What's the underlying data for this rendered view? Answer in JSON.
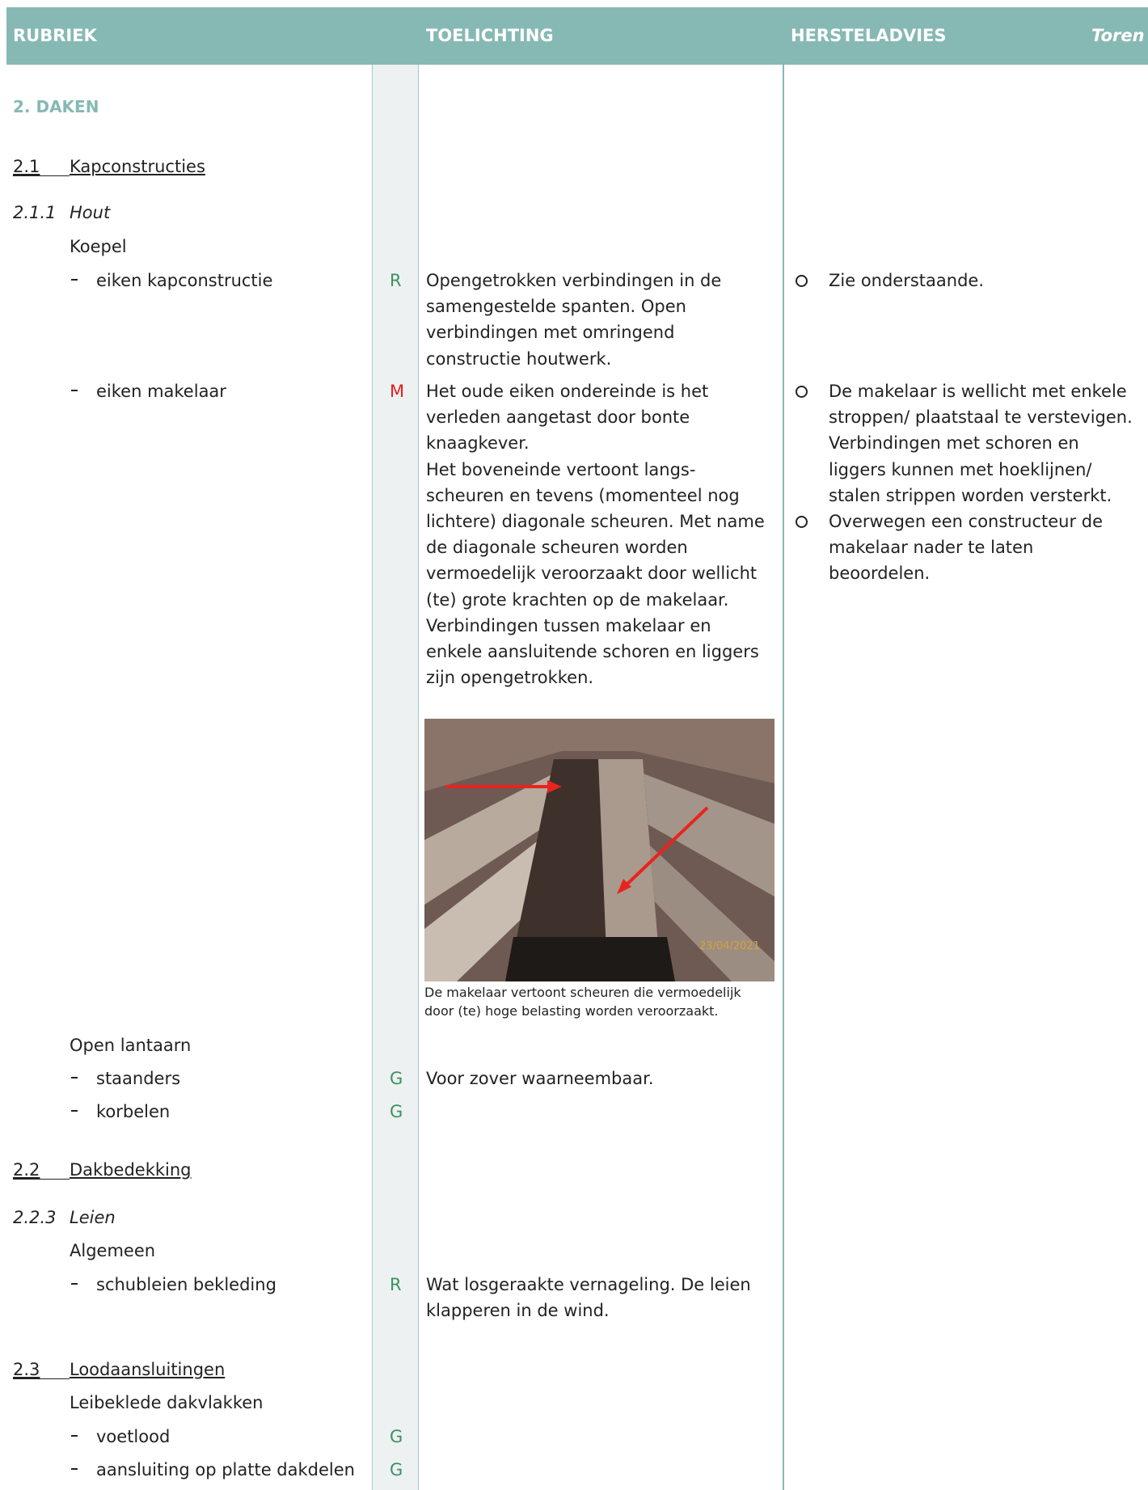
{
  "header": {
    "rubriek": "RUBRIEK",
    "toelichting": "TOELICHTING",
    "hersteladvies": "HERSTELADVIES",
    "object": "Toren"
  },
  "chapter": "2. DAKEN",
  "rows": [
    {
      "number": "2.1",
      "title": "Kapconstructies"
    },
    {
      "number": "2.1.1",
      "title": "Hout"
    },
    {
      "group": "Koepel"
    },
    {
      "item": "eiken kapconstructie",
      "score": "R",
      "notes": [
        "Opengetrokken verbindingen in de",
        "samengestelde spanten. Open",
        "verbindingen met omringend",
        "constructie houtwerk."
      ],
      "advice": [
        [
          "Zie onderstaande."
        ]
      ]
    },
    {
      "item": "eiken makelaar",
      "score": "M",
      "notes": [
        "Het oude eiken ondereinde is het",
        "verleden aangetast door bonte",
        "knaagkever.",
        "Het boveneinde vertoont langs-",
        "scheuren en tevens (momenteel nog",
        "lichtere) diagonale scheuren. Met name",
        "de diagonale scheuren worden",
        "vermoedelijk veroorzaakt door wellicht",
        "(te) grote krachten op de makelaar.",
        "Verbindingen tussen makelaar en",
        "enkele aansluitende schoren en liggers",
        "zijn opengetrokken."
      ],
      "caption": [
        "De makelaar vertoont scheuren die vermoedelijk",
        "door (te) hoge belasting worden veroorzaakt."
      ],
      "advice": [
        [
          "De makelaar is wellicht met enkele",
          "stroppen/ plaatstaal te verstevigen.",
          "Verbindingen met schoren en",
          "liggers kunnen met hoeklijnen/",
          "stalen strippen worden versterkt."
        ],
        [
          "Overwegen een constructeur de",
          "makelaar nader te laten",
          "beoordelen."
        ]
      ]
    },
    {
      "group": "Open lantaarn"
    },
    {
      "item": "staanders",
      "score": "G",
      "notes": [
        "Voor zover waarneembaar."
      ]
    },
    {
      "item": "korbelen",
      "score": "G"
    },
    {
      "number": "2.2",
      "title": "Dakbedekking"
    },
    {
      "number": "2.2.3",
      "title": "Leien"
    },
    {
      "group": "Algemeen"
    },
    {
      "item": "schubleien bekleding",
      "score": "R",
      "notes": [
        "Wat losgeraakte vernageling. De leien",
        "klapperen in de wind."
      ]
    },
    {
      "number": "2.3",
      "title": "Loodaansluitingen"
    },
    {
      "group": "Leibeklede dakvlakken"
    },
    {
      "item": "voetlood",
      "score": "G"
    },
    {
      "item": "aansluiting op platte dakdelen",
      "score": "G"
    }
  ]
}
